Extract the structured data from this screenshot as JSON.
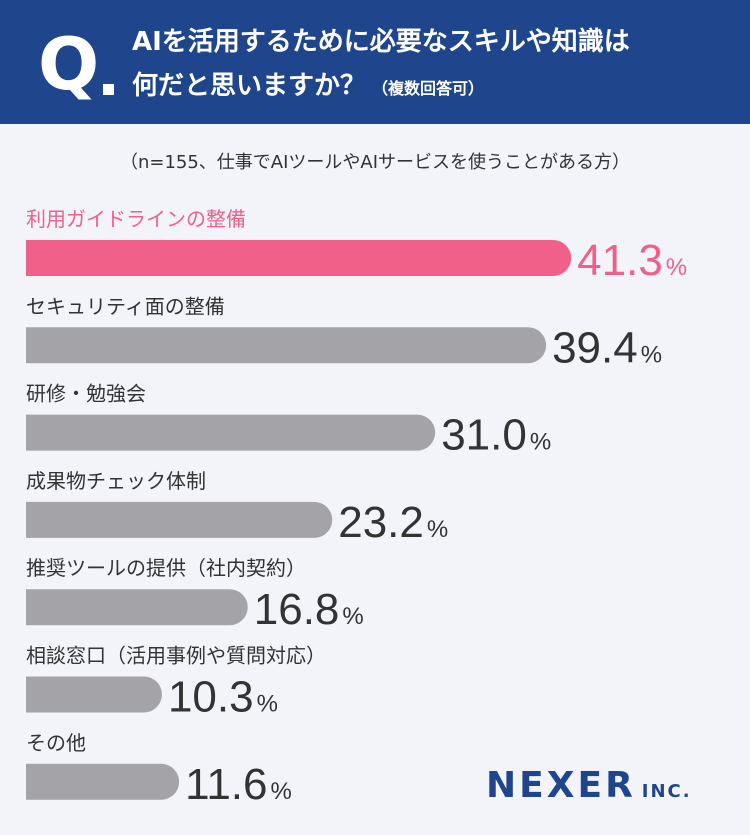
{
  "header": {
    "q_letter": "Q",
    "line1": "AIを活用するために必要なスキルや知識は",
    "line2": "何だと思いますか？",
    "note": "（複数回答可）"
  },
  "sample_note": "（n=155、仕事でAIツールやAIサービスを使うことがある方）",
  "logo": {
    "main": "NEXER",
    "sub": "INC."
  },
  "colors": {
    "header_bg": "#1f468c",
    "highlight": "#f06088",
    "bar": "#a4a4a8",
    "value_text": "#333333",
    "background": "#f2f4fa"
  },
  "chart_data": {
    "type": "bar",
    "orientation": "horizontal",
    "unit": "%",
    "categories": [
      "利用ガイドラインの整備",
      "セキュリティ面の整備",
      "研修・勉強会",
      "成果物チェック体制",
      "推奨ツールの提供（社内契約）",
      "相談窓口（活用事例や質問対応）",
      "その他"
    ],
    "values": [
      41.3,
      39.4,
      31.0,
      23.2,
      16.8,
      10.3,
      11.6
    ],
    "value_labels": [
      "41.3",
      "39.4",
      "31.0",
      "23.2",
      "16.8",
      "10.3",
      "11.6"
    ],
    "highlight_index": 0
  }
}
